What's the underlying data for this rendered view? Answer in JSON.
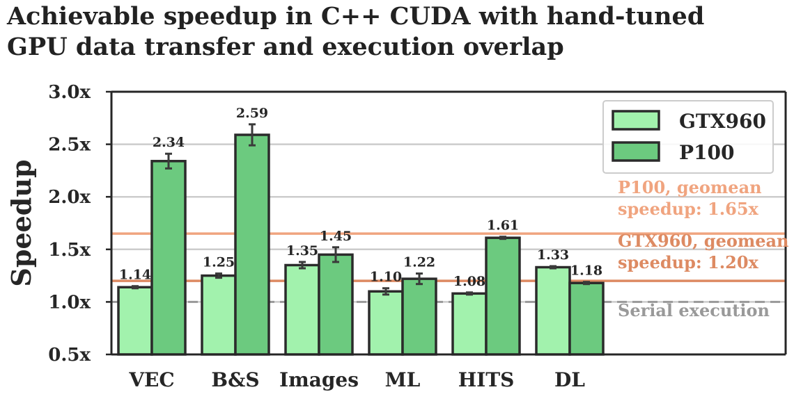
{
  "chart_data": {
    "type": "bar",
    "title": [
      "Achievable speedup in C++ CUDA with hand-tuned",
      "GPU data transfer and execution overlap"
    ],
    "xlabel": "",
    "ylabel": "Speedup",
    "ylim": [
      0.5,
      3.0
    ],
    "y_ticks": [
      0.5,
      1.0,
      1.5,
      2.0,
      2.5,
      3.0
    ],
    "y_tick_labels": [
      "0.5x",
      "1.0x",
      "1.5x",
      "2.0x",
      "2.5x",
      "3.0x"
    ],
    "grid": true,
    "legend_position": "top-right",
    "categories": [
      "VEC",
      "B&S",
      "Images",
      "ML",
      "HITS",
      "DL"
    ],
    "series": [
      {
        "name": "GTX960",
        "color": "#a2f2ad",
        "values": [
          1.14,
          1.25,
          1.35,
          1.1,
          1.08,
          1.33
        ],
        "value_labels": [
          "1.14",
          "1.25",
          "1.35",
          "1.10",
          "1.08",
          "1.33"
        ],
        "error": [
          0.01,
          0.02,
          0.03,
          0.03,
          0.01,
          0.01
        ]
      },
      {
        "name": "P100",
        "color": "#6cca7f",
        "values": [
          2.34,
          2.59,
          1.45,
          1.22,
          1.61,
          1.18
        ],
        "value_labels": [
          "2.34",
          "2.59",
          "1.45",
          "1.22",
          "1.61",
          "1.18"
        ],
        "error": [
          0.07,
          0.1,
          0.07,
          0.05,
          0.01,
          0.01
        ]
      }
    ],
    "reference_lines": [
      {
        "value": 1.65,
        "label": [
          "P100, geomean",
          "speedup: 1.65x"
        ],
        "color": "#f0a47f",
        "style": "solid"
      },
      {
        "value": 1.2,
        "label": [
          "GTX960, geomean",
          "speedup: 1.20x"
        ],
        "color": "#dd8a62",
        "style": "solid"
      },
      {
        "value": 1.0,
        "label": [
          "Serial execution"
        ],
        "color": "#999999",
        "style": "dashed"
      }
    ]
  }
}
